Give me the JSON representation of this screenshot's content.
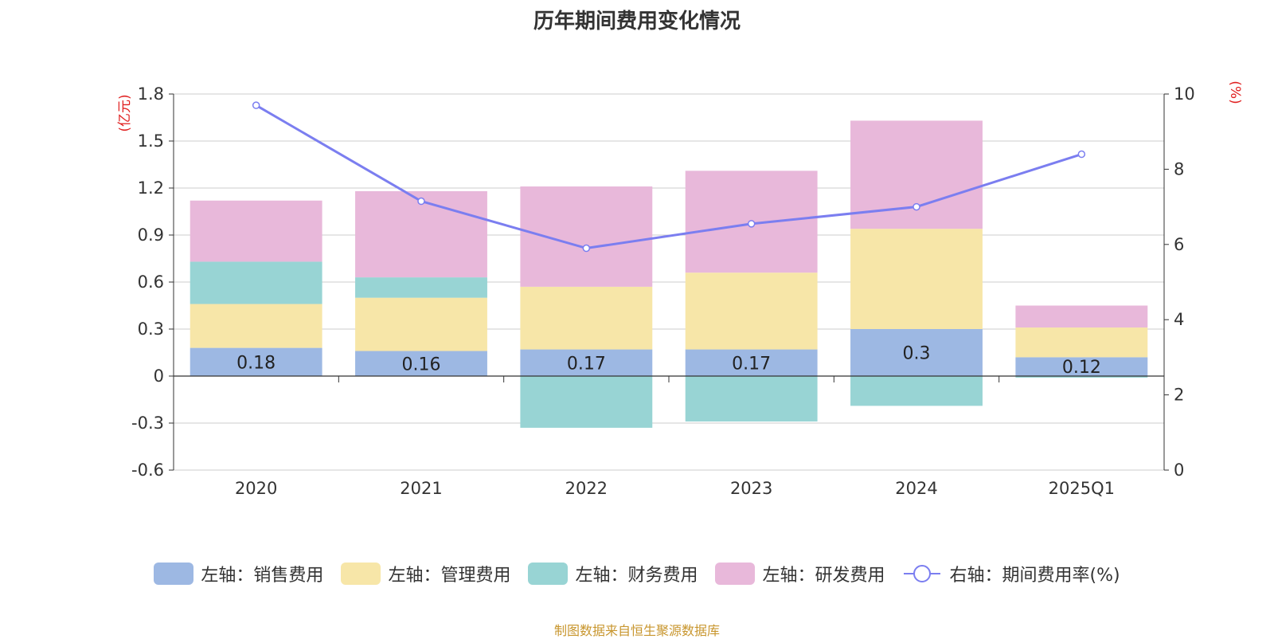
{
  "chart_data": {
    "type": "bar",
    "title": "历年期间费用变化情况",
    "categories": [
      "2020",
      "2021",
      "2022",
      "2023",
      "2024",
      "2025Q1"
    ],
    "left_axis": {
      "unit": "(亿元)",
      "ylim": [
        -0.6,
        1.8
      ],
      "ticks": [
        "1.8",
        "1.5",
        "1.2",
        "0.9",
        "0.6",
        "0.3",
        "0",
        "-0.3",
        "-0.6"
      ],
      "tick_values": [
        1.8,
        1.5,
        1.2,
        0.9,
        0.6,
        0.3,
        0,
        -0.3,
        -0.6
      ]
    },
    "right_axis": {
      "unit": "(%)",
      "ylim": [
        0,
        10
      ],
      "ticks": [
        "10",
        "8",
        "6",
        "4",
        "2",
        "0"
      ],
      "tick_values": [
        10,
        8,
        6,
        4,
        2,
        0
      ]
    },
    "stacked": true,
    "series": [
      {
        "name": "左轴：销售费用",
        "color": "#9db8e3",
        "values": [
          0.18,
          0.16,
          0.17,
          0.17,
          0.3,
          0.12
        ],
        "labels": [
          "0.18",
          "0.16",
          "0.17",
          "0.17",
          "0.3",
          "0.12"
        ]
      },
      {
        "name": "左轴：管理费用",
        "color": "#f7e6a8",
        "values": [
          0.28,
          0.34,
          0.4,
          0.49,
          0.64,
          0.19
        ]
      },
      {
        "name": "左轴：财务费用",
        "color": "#98d4d4",
        "values": [
          0.27,
          0.13,
          -0.33,
          -0.29,
          -0.19,
          -0.01
        ]
      },
      {
        "name": "左轴：研发费用",
        "color": "#e8b8da",
        "values": [
          0.39,
          0.55,
          0.64,
          0.65,
          0.69,
          0.14
        ]
      }
    ],
    "line_series": {
      "name": "右轴：期间费用率(%)",
      "color": "#7b7ef0",
      "values": [
        9.7,
        7.15,
        5.9,
        6.55,
        7.0,
        8.4
      ]
    },
    "grid": true,
    "legend_position": "bottom"
  },
  "source": "制图数据来自恒生聚源数据库"
}
